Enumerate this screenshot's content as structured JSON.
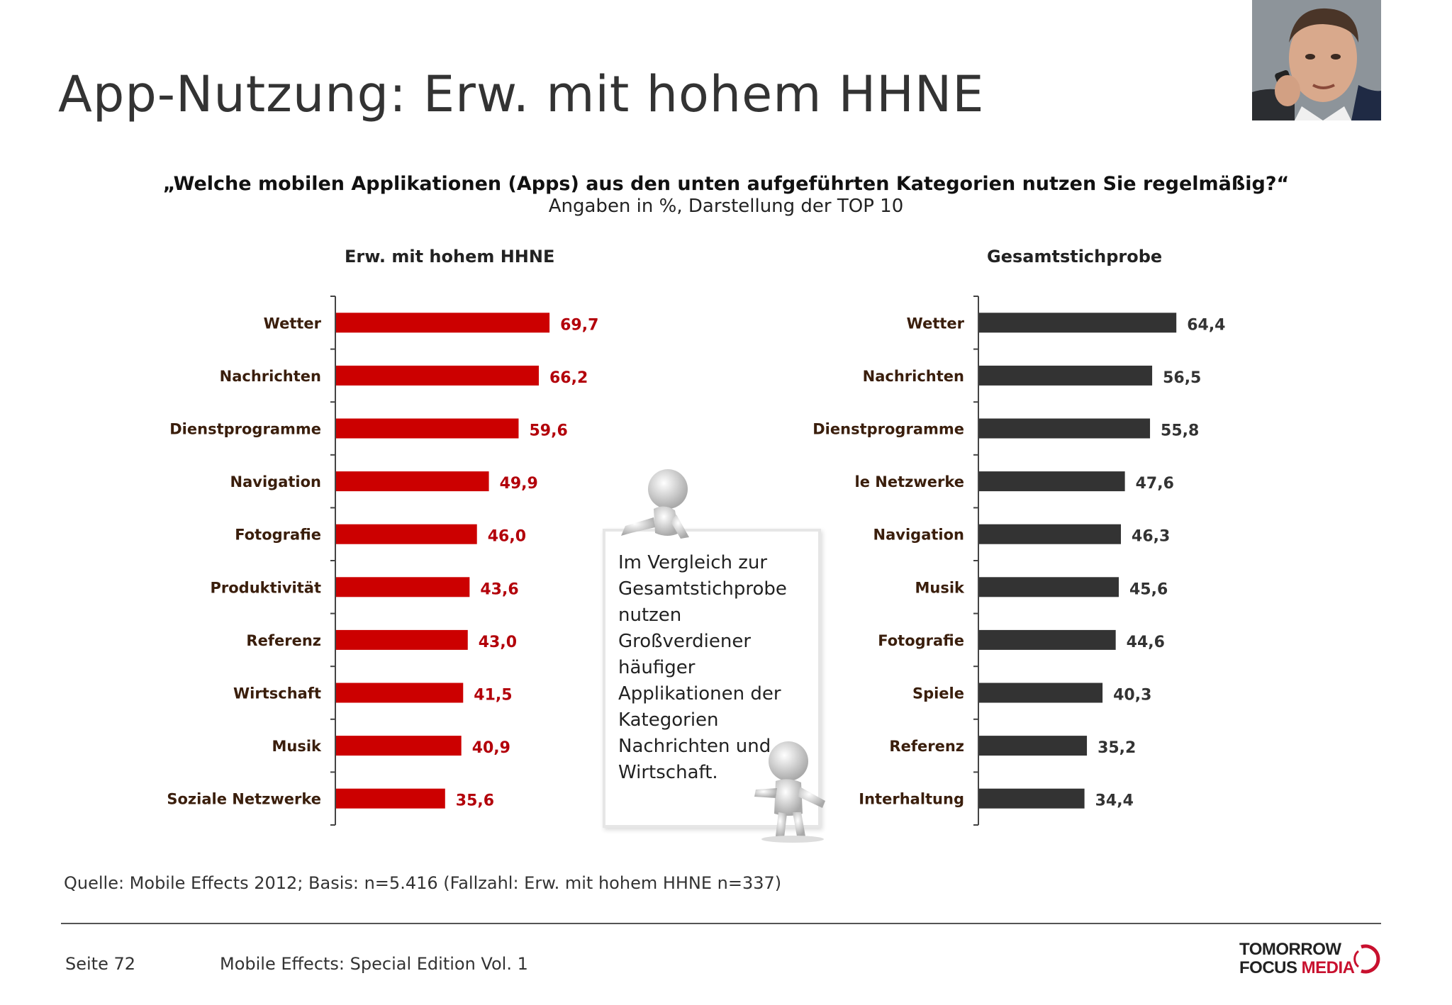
{
  "page": {
    "title": "App-Nutzung: Erw. mit hohem HHNE",
    "question": "„Welche mobilen Applikationen (Apps) aus den unten aufgeführten Kategorien nutzen Sie regelmäßig?“",
    "subtitle": "Angaben in %, Darstellung der TOP 10",
    "source": "Quelle: Mobile Effects 2012; Basis: n=5.416 (Fallzahl: Erw. mit hohem HHNE n=337)",
    "page_number": "Seite 72",
    "edition": "Mobile Effects: Special Edition Vol. 1",
    "note": "Im Vergleich zur Gesamtstichprobe nutzen Großverdiener häufiger Applikationen der Kategorien Nachrichten und Wirtschaft.",
    "logo_line1": "TOMORROW",
    "logo_line2a": "FOCUS",
    "logo_line2b": "MEDIA",
    "photo_icon": "businessman-phone-photo",
    "figure_icon": "3d-figure-icon"
  },
  "chart_data": [
    {
      "type": "bar",
      "orientation": "horizontal",
      "title": "Erw. mit hohem HHNE",
      "categories": [
        "Wetter",
        "Nachrichten",
        "Dienstprogramme",
        "Navigation",
        "Fotografie",
        "Produktivität",
        "Referenz",
        "Wirtschaft",
        "Musik",
        "Soziale Netzwerke"
      ],
      "values": [
        69.7,
        66.2,
        59.6,
        49.9,
        46.0,
        43.6,
        43.0,
        41.5,
        40.9,
        35.6
      ],
      "value_labels": [
        "69,7",
        "66,2",
        "59,6",
        "49,9",
        "46,0",
        "43,6",
        "43,0",
        "41,5",
        "40,9",
        "35,6"
      ],
      "xlim": [
        0,
        100
      ],
      "grid": false,
      "bar_color": "#cc0000",
      "label_color": "#b3000a"
    },
    {
      "type": "bar",
      "orientation": "horizontal",
      "title": "Gesamtstichprobe",
      "categories": [
        "Wetter",
        "Nachrichten",
        "Dienstprogramme",
        "le Netzwerke",
        "Navigation",
        "Musik",
        "Fotografie",
        "Spiele",
        "Referenz",
        "Interhaltung"
      ],
      "values": [
        64.4,
        56.5,
        55.8,
        47.6,
        46.3,
        45.6,
        44.6,
        40.3,
        35.2,
        34.4
      ],
      "value_labels": [
        "64,4",
        "56,5",
        "55,8",
        "47,6",
        "46,3",
        "45,6",
        "44,6",
        "40,3",
        "35,2",
        "34,4"
      ],
      "xlim": [
        0,
        100
      ],
      "grid": false,
      "bar_color": "#333333",
      "label_color": "#333333"
    }
  ]
}
